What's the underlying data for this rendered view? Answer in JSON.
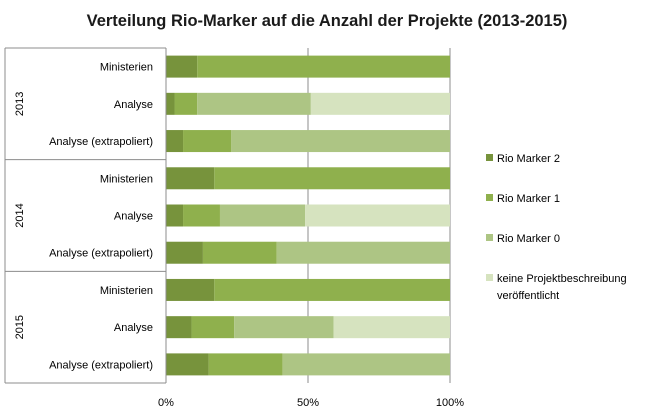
{
  "chart_data": {
    "type": "bar",
    "orientation": "horizontal",
    "stacked": "percent",
    "title": "Verteilung Rio-Marker auf die Anzahl der Projekte (2013-2015)",
    "xlim": [
      0,
      100
    ],
    "x_ticks": [
      "0%",
      "50%",
      "100%"
    ],
    "gridlines": "vertical",
    "legend_position": "right",
    "groups": [
      {
        "label": "2013",
        "categories": [
          "Ministerien",
          "Analyse",
          "Analyse (extrapoliert)"
        ]
      },
      {
        "label": "2014",
        "categories": [
          "Ministerien",
          "Analyse",
          "Analyse (extrapoliert)"
        ]
      },
      {
        "label": "2015",
        "categories": [
          "Ministerien",
          "Analyse",
          "Analyse (extrapoliert)"
        ]
      }
    ],
    "series": [
      {
        "name": "Rio Marker 2",
        "color": "#77933c",
        "values": [
          11,
          3,
          6,
          17,
          6,
          13,
          17,
          9,
          15
        ]
      },
      {
        "name": "Rio Marker 1",
        "color": "#8fb04d",
        "values": [
          89,
          8,
          17,
          83,
          13,
          26,
          83,
          15,
          26
        ]
      },
      {
        "name": "Rio Marker 0",
        "color": "#adc584",
        "values": [
          0,
          40,
          77,
          0,
          30,
          61,
          0,
          35,
          59
        ]
      },
      {
        "name": "keine Projektbeschreibung veröffentlicht",
        "color": "#d6e3bf",
        "values": [
          0,
          49,
          0,
          0,
          51,
          0,
          0,
          41,
          0
        ]
      }
    ]
  }
}
